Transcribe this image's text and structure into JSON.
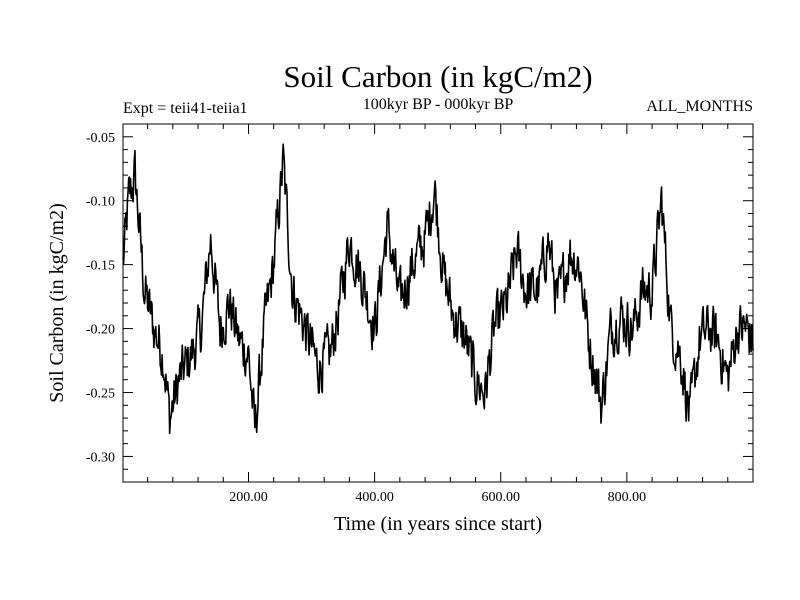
{
  "header": {
    "title": "Soil Carbon (in kgC/m2)",
    "subtitle": "100kyr BP - 000kyr BP",
    "left_label": "Expt = teii41-teiia1",
    "right_label": "ALL_MONTHS"
  },
  "chart_data": {
    "type": "line",
    "xlabel": "Time (in years since start)",
    "ylabel": "Soil Carbon (in kgC/m2)",
    "xlim": [
      1,
      1000
    ],
    "ylim": [
      -0.32,
      -0.04
    ],
    "xticks_major": [
      200,
      400,
      600,
      800
    ],
    "xtick_labels": [
      "200.00",
      "400.00",
      "600.00",
      "800.00"
    ],
    "yticks_major": [
      -0.3,
      -0.25,
      -0.2,
      -0.15,
      -0.1,
      -0.05
    ],
    "ytick_labels": [
      "-0.30",
      "-0.25",
      "-0.20",
      "-0.15",
      "-0.10",
      "-0.05"
    ],
    "line_color": "#000000",
    "series_anchors": {
      "x": [
        1,
        10,
        20,
        35,
        50,
        65,
        75,
        90,
        110,
        125,
        140,
        155,
        170,
        185,
        200,
        210,
        225,
        240,
        255,
        270,
        290,
        310,
        330,
        345,
        360,
        380,
        400,
        420,
        440,
        460,
        480,
        495,
        510,
        525,
        545,
        560,
        575,
        590,
        610,
        625,
        640,
        660,
        675,
        690,
        710,
        725,
        740,
        760,
        775,
        790,
        810,
        825,
        840,
        855,
        870,
        885,
        900,
        915,
        930,
        945,
        960,
        975,
        990,
        1000
      ],
      "y": [
        -0.15,
        -0.1,
        -0.08,
        -0.17,
        -0.2,
        -0.22,
        -0.27,
        -0.24,
        -0.22,
        -0.2,
        -0.13,
        -0.2,
        -0.18,
        -0.21,
        -0.22,
        -0.28,
        -0.2,
        -0.15,
        -0.07,
        -0.17,
        -0.2,
        -0.23,
        -0.22,
        -0.18,
        -0.13,
        -0.16,
        -0.2,
        -0.12,
        -0.18,
        -0.15,
        -0.13,
        -0.09,
        -0.16,
        -0.19,
        -0.21,
        -0.24,
        -0.25,
        -0.2,
        -0.18,
        -0.14,
        -0.17,
        -0.17,
        -0.13,
        -0.18,
        -0.14,
        -0.15,
        -0.21,
        -0.26,
        -0.2,
        -0.19,
        -0.2,
        -0.17,
        -0.17,
        -0.1,
        -0.2,
        -0.22,
        -0.27,
        -0.21,
        -0.2,
        -0.21,
        -0.24,
        -0.2,
        -0.2,
        -0.21
      ]
    },
    "noise_amplitude": 0.018
  }
}
